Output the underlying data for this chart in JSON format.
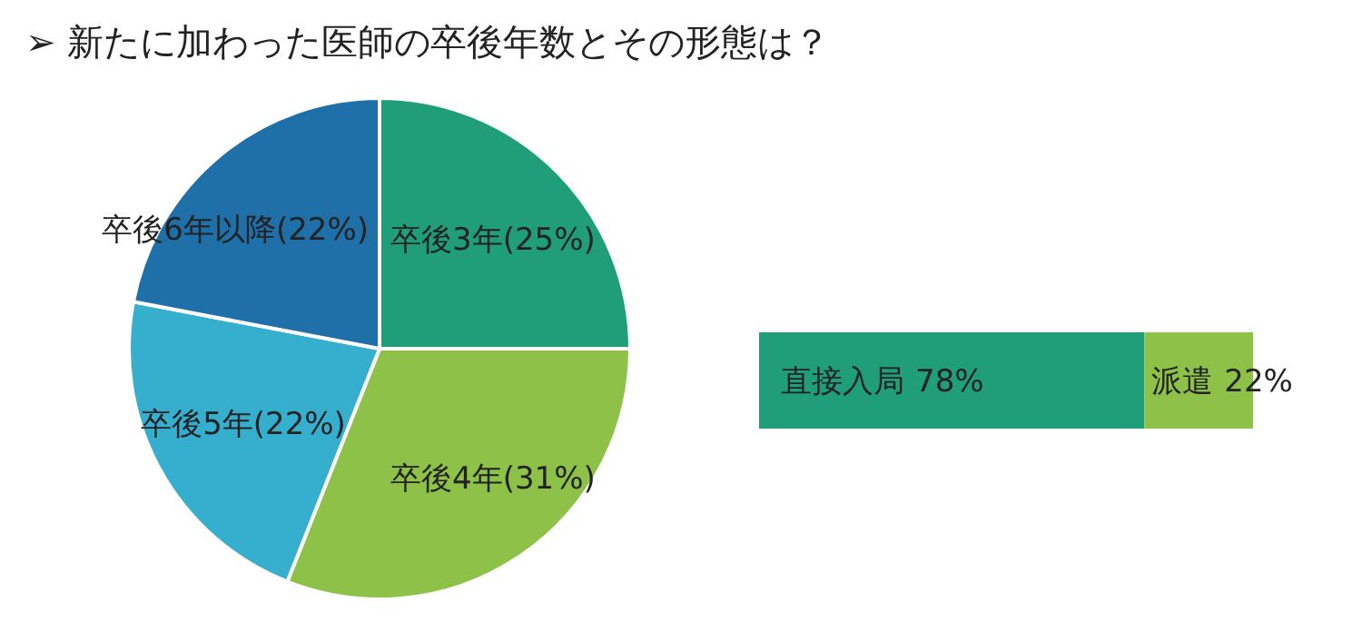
{
  "chart_data": [
    {
      "type": "pie",
      "title": "➢ 新たに加わった医師の卒後年数とその形態は？",
      "categories": [
        "卒後3年",
        "卒後4年",
        "卒後5年",
        "卒後6年以降"
      ],
      "values": [
        25,
        31,
        22,
        22
      ],
      "colors": [
        "#1f9e79",
        "#8dc147",
        "#36afcf",
        "#1f6fa8"
      ],
      "value_labels": [
        "(25%)",
        "(31%)",
        "(22%)",
        "(22%)"
      ]
    },
    {
      "type": "bar",
      "orientation": "horizontal",
      "stacked": true,
      "categories": [
        null
      ],
      "series": [
        {
          "name": "直接入局",
          "color": "#1f9e79",
          "values": [
            78
          ],
          "value_labels": [
            "78%"
          ]
        },
        {
          "name": "派遣",
          "color": "#8dc147",
          "values": [
            22
          ],
          "value_labels": [
            "22%"
          ]
        }
      ]
    }
  ]
}
